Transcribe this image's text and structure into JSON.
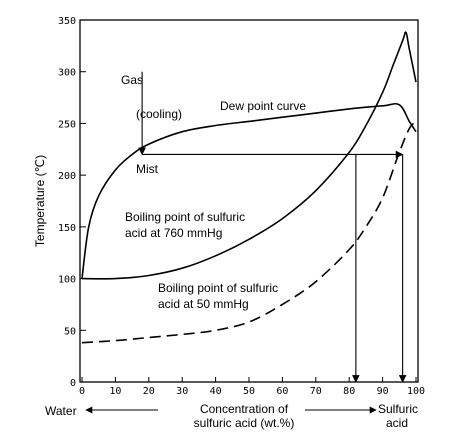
{
  "chart_data": {
    "type": "line",
    "ylabel": "Temperature (℃)",
    "xlim": [
      0,
      100
    ],
    "ylim": [
      0,
      350
    ],
    "x_ticks": [
      "0",
      "10",
      "20",
      "30",
      "40",
      "50",
      "60",
      "70",
      "80",
      "90",
      "100"
    ],
    "y_ticks": [
      "0",
      "50",
      "100",
      "150",
      "200",
      "250",
      "300",
      "350"
    ],
    "grid": false,
    "series": [
      {
        "id": "dew",
        "style": "solid",
        "x": [
          0,
          2,
          5,
          10,
          15,
          20,
          30,
          40,
          50,
          60,
          70,
          80,
          90,
          95,
          98,
          100
        ],
        "y": [
          100,
          150,
          180,
          205,
          220,
          230,
          242,
          248,
          252,
          256,
          260,
          264,
          267,
          268,
          252,
          242
        ]
      },
      {
        "id": "bp760",
        "style": "solid",
        "x": [
          0,
          10,
          20,
          30,
          40,
          50,
          60,
          70,
          80,
          85,
          90,
          93,
          96,
          97,
          98,
          100
        ],
        "y": [
          100,
          100,
          103,
          110,
          122,
          138,
          158,
          185,
          222,
          248,
          280,
          305,
          330,
          338,
          322,
          290
        ]
      },
      {
        "id": "bp50",
        "style": "dashed",
        "x": [
          0,
          10,
          20,
          30,
          40,
          50,
          60,
          70,
          80,
          85,
          90,
          95,
          98,
          100
        ],
        "y": [
          38,
          40,
          43,
          46,
          50,
          58,
          75,
          97,
          128,
          150,
          178,
          222,
          245,
          252
        ]
      }
    ],
    "guide_lines": [
      {
        "x": [
          18,
          18
        ],
        "y": [
          300,
          220
        ]
      },
      {
        "x": [
          18,
          96
        ],
        "y": [
          220,
          220
        ]
      },
      {
        "x": [
          82,
          82
        ],
        "y": [
          220,
          0
        ]
      },
      {
        "x": [
          96,
          96
        ],
        "y": [
          220,
          0
        ]
      }
    ],
    "annotations": {
      "gas": "Gas",
      "cooling": "(cooling)",
      "dew_point": "Dew point curve",
      "mist": "Mist",
      "bp760_line1": "Boiling point of sulfuric",
      "bp760_line2": "acid at 760 mmHg",
      "bp50_line1": "Boiling point of sulfuric",
      "bp50_line2": "acid at 50 mmHg"
    },
    "bottom": {
      "water": "Water",
      "xlabel_line1": "Concentration of",
      "xlabel_line2": "sulfuric acid (wt.%)",
      "acid_line1": "Sulfuric",
      "acid_line2": "acid"
    }
  }
}
